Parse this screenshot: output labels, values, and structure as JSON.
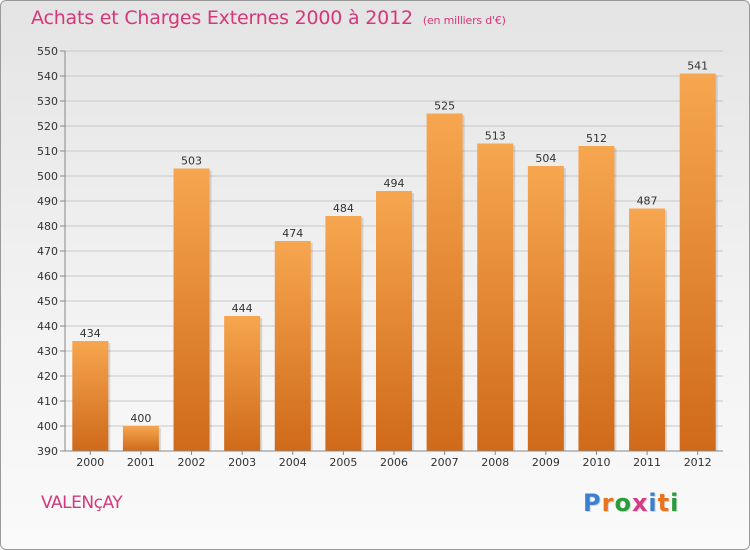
{
  "chart_title": "Achats et Charges Externes 2000 à 2012",
  "chart_subtitle": "(en milliers d'€)",
  "location": "VALENçAY",
  "logo": {
    "letters": [
      "P",
      "r",
      "o",
      "x",
      "i",
      "t",
      "i"
    ],
    "colors": [
      "#3a7fd0",
      "#e8731a",
      "#2a9d3a",
      "#d83a8a",
      "#3a7fd0",
      "#e8731a",
      "#2a9d3a"
    ]
  },
  "colors": {
    "bar_top": "#f7a650",
    "bar_bottom": "#cf6a1a",
    "accent": "#d6367a"
  },
  "chart_data": {
    "type": "bar",
    "title": "Achats et Charges Externes 2000 à 2012",
    "subtitle": "(en milliers d'€)",
    "categories": [
      "2000",
      "2001",
      "2002",
      "2003",
      "2004",
      "2005",
      "2006",
      "2007",
      "2008",
      "2009",
      "2010",
      "2011",
      "2012"
    ],
    "values": [
      434,
      400,
      503,
      444,
      474,
      484,
      494,
      525,
      513,
      504,
      512,
      487,
      541
    ],
    "ylim": [
      390,
      550
    ],
    "yticks": [
      390,
      400,
      410,
      420,
      430,
      440,
      450,
      460,
      470,
      480,
      490,
      500,
      510,
      520,
      530,
      540,
      550
    ],
    "grid": true,
    "legend": "none"
  }
}
